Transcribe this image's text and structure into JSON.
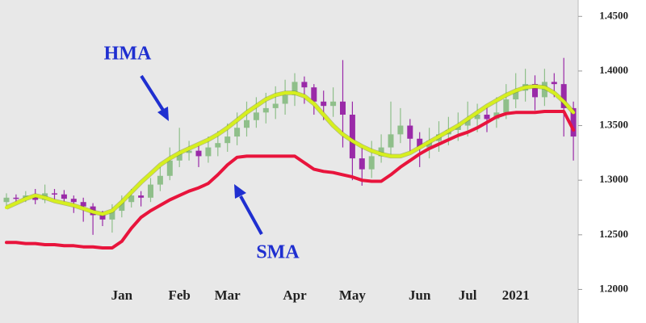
{
  "chart_data": {
    "type": "candlestick",
    "categories": [
      null,
      null,
      null,
      null,
      null,
      null,
      null,
      null,
      null,
      null,
      null,
      null,
      "Jan",
      null,
      null,
      null,
      null,
      null,
      "Feb",
      null,
      null,
      null,
      null,
      "Mar",
      null,
      null,
      null,
      null,
      null,
      null,
      "Apr",
      null,
      null,
      null,
      null,
      null,
      "May",
      null,
      null,
      null,
      null,
      null,
      null,
      "Jun",
      null,
      null,
      null,
      null,
      "Jul",
      null,
      null,
      null,
      null,
      "2021",
      null,
      null,
      null,
      null,
      null,
      null
    ],
    "open": [
      1.28,
      1.284,
      1.283,
      1.286,
      1.282,
      1.288,
      1.287,
      1.283,
      1.28,
      1.276,
      1.268,
      1.264,
      1.272,
      1.28,
      1.286,
      1.284,
      1.296,
      1.304,
      1.318,
      1.325,
      1.327,
      1.322,
      1.33,
      1.334,
      1.34,
      1.348,
      1.355,
      1.362,
      1.366,
      1.37,
      1.378,
      1.39,
      1.385,
      1.372,
      1.368,
      1.372,
      1.36,
      1.32,
      1.31,
      1.322,
      1.33,
      1.342,
      1.35,
      1.338,
      1.33,
      1.336,
      1.342,
      1.346,
      1.35,
      1.356,
      1.36,
      1.356,
      1.362,
      1.374,
      1.382,
      1.388,
      1.376,
      1.39,
      1.388,
      1.366
    ],
    "high": [
      1.288,
      1.287,
      1.29,
      1.292,
      1.296,
      1.292,
      1.291,
      1.286,
      1.284,
      1.279,
      1.272,
      1.278,
      1.286,
      1.292,
      1.29,
      1.302,
      1.312,
      1.33,
      1.348,
      1.336,
      1.333,
      1.34,
      1.345,
      1.352,
      1.362,
      1.372,
      1.376,
      1.38,
      1.386,
      1.392,
      1.398,
      1.395,
      1.388,
      1.382,
      1.385,
      1.41,
      1.372,
      1.33,
      1.336,
      1.342,
      1.372,
      1.366,
      1.356,
      1.344,
      1.348,
      1.354,
      1.358,
      1.362,
      1.372,
      1.37,
      1.368,
      1.376,
      1.388,
      1.398,
      1.402,
      1.396,
      1.402,
      1.398,
      1.412,
      1.372
    ],
    "low": [
      1.277,
      1.279,
      1.28,
      1.278,
      1.279,
      1.282,
      1.278,
      1.27,
      1.262,
      1.25,
      1.258,
      1.252,
      1.266,
      1.275,
      1.276,
      1.28,
      1.29,
      1.3,
      1.312,
      1.318,
      1.312,
      1.316,
      1.322,
      1.326,
      1.332,
      1.34,
      1.348,
      1.352,
      1.356,
      1.36,
      1.368,
      1.37,
      1.36,
      1.355,
      1.358,
      1.33,
      1.3,
      1.295,
      1.302,
      1.316,
      1.322,
      1.334,
      1.326,
      1.312,
      1.32,
      1.326,
      1.332,
      1.336,
      1.34,
      1.344,
      1.344,
      1.348,
      1.356,
      1.366,
      1.372,
      1.364,
      1.368,
      1.376,
      1.34,
      1.318
    ],
    "close": [
      1.284,
      1.283,
      1.286,
      1.282,
      1.288,
      1.287,
      1.283,
      1.28,
      1.276,
      1.268,
      1.264,
      1.272,
      1.28,
      1.286,
      1.284,
      1.296,
      1.304,
      1.318,
      1.325,
      1.327,
      1.322,
      1.33,
      1.334,
      1.34,
      1.348,
      1.355,
      1.362,
      1.366,
      1.37,
      1.378,
      1.39,
      1.385,
      1.372,
      1.368,
      1.372,
      1.36,
      1.32,
      1.31,
      1.322,
      1.33,
      1.342,
      1.35,
      1.338,
      1.33,
      1.336,
      1.342,
      1.346,
      1.35,
      1.356,
      1.36,
      1.356,
      1.362,
      1.374,
      1.382,
      1.388,
      1.376,
      1.39,
      1.388,
      1.366,
      1.34
    ],
    "up_color": "#8fbf8a",
    "down_color": "#9a2aa8",
    "series": [
      {
        "name": "HMA",
        "color": "#d6ef1e",
        "values": [
          1.275,
          1.279,
          1.283,
          1.286,
          1.284,
          1.281,
          1.279,
          1.277,
          1.274,
          1.271,
          1.269,
          1.272,
          1.28,
          1.289,
          1.298,
          1.306,
          1.314,
          1.32,
          1.325,
          1.329,
          1.333,
          1.337,
          1.342,
          1.348,
          1.355,
          1.362,
          1.368,
          1.374,
          1.378,
          1.38,
          1.38,
          1.377,
          1.37,
          1.36,
          1.35,
          1.342,
          1.336,
          1.331,
          1.327,
          1.324,
          1.322,
          1.322,
          1.325,
          1.33,
          1.335,
          1.34,
          1.345,
          1.35,
          1.356,
          1.362,
          1.368,
          1.373,
          1.378,
          1.382,
          1.385,
          1.386,
          1.385,
          1.38,
          1.372,
          1.362
        ]
      },
      {
        "name": "SMA",
        "color": "#e8143c",
        "values": [
          1.243,
          1.243,
          1.242,
          1.242,
          1.241,
          1.241,
          1.24,
          1.24,
          1.239,
          1.239,
          1.238,
          1.238,
          1.244,
          1.256,
          1.266,
          1.272,
          1.277,
          1.282,
          1.286,
          1.29,
          1.293,
          1.297,
          1.305,
          1.314,
          1.321,
          1.322,
          1.322,
          1.322,
          1.322,
          1.322,
          1.322,
          1.316,
          1.31,
          1.308,
          1.307,
          1.305,
          1.303,
          1.3,
          1.299,
          1.299,
          1.305,
          1.312,
          1.318,
          1.324,
          1.329,
          1.333,
          1.337,
          1.341,
          1.344,
          1.348,
          1.353,
          1.358,
          1.361,
          1.362,
          1.362,
          1.362,
          1.363,
          1.363,
          1.363,
          1.346
        ]
      }
    ],
    "annotation_color": "#1f2fd0",
    "ylim": [
      1.17,
      1.465
    ],
    "yticks": [
      {
        "value": 1.2,
        "label": "1.2000"
      },
      {
        "value": 1.25,
        "label": "1.2500"
      },
      {
        "value": 1.3,
        "label": "1.3000"
      },
      {
        "value": 1.35,
        "label": "1.3500"
      },
      {
        "value": 1.4,
        "label": "1.4000"
      },
      {
        "value": 1.45,
        "label": "1.4500"
      }
    ]
  }
}
